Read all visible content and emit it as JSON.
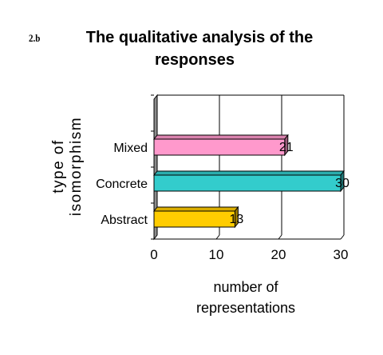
{
  "slide_number": "2.b",
  "title_line1": "The qualitative analysis of the",
  "title_line2": "responses",
  "chart_data": {
    "type": "bar",
    "orientation": "horizontal",
    "title": "The qualitative analysis of the responses",
    "ylabel_line1": "type of",
    "ylabel_line2": "isomorphism",
    "xlabel_line1": "number of",
    "xlabel_line2": "representations",
    "categories": [
      "Abstract",
      "Concrete",
      "Mixed"
    ],
    "values": [
      13,
      30,
      21
    ],
    "data_labels": [
      "13",
      "30",
      "21"
    ],
    "bar_colors": [
      "#ffcc00",
      "#33cccc",
      "#ff99cc"
    ],
    "xlim": [
      0,
      30
    ],
    "xticks": [
      "0",
      "10",
      "20",
      "30"
    ],
    "grid": "vertical",
    "style": "3d"
  }
}
